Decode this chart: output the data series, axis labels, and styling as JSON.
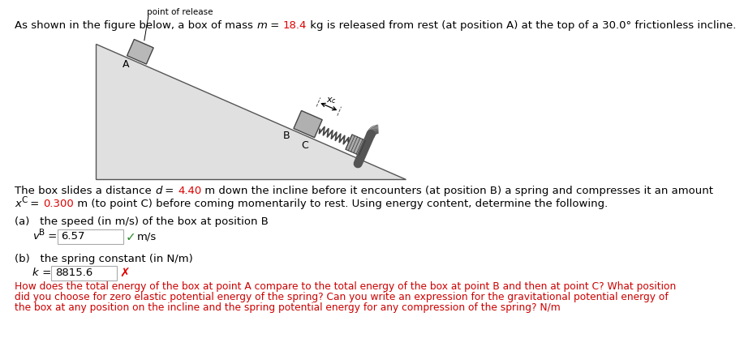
{
  "bg_color": "#ffffff",
  "red_color": "#dd0000",
  "green_color": "#2a8a2a",
  "text_color": "#000000",
  "hint_color": "#cc0000",
  "incline_face": "#e0e0e0",
  "incline_edge": "#555555",
  "box_face": "#aaaaaa",
  "box_edge": "#444444",
  "spring_color": "#444444",
  "wall_face": "#888888",
  "point_of_release": "point of release",
  "label_A": "A",
  "label_B": "B",
  "label_C": "C",
  "title_parts": [
    [
      "As shown in the figure below, a box of mass ",
      "#000000",
      false,
      false
    ],
    [
      "m",
      "#000000",
      true,
      false
    ],
    [
      " = ",
      "#000000",
      false,
      false
    ],
    [
      "18.4",
      "#dd0000",
      false,
      false
    ],
    [
      " kg is released from rest (at position A) at the top of a 30.0° frictionless incline.",
      "#000000",
      false,
      false
    ]
  ],
  "body1_parts": [
    [
      "The box slides a distance ",
      "#000000",
      false,
      false
    ],
    [
      "d",
      "#000000",
      true,
      false
    ],
    [
      " = ",
      "#000000",
      false,
      false
    ],
    [
      "4.40",
      "#dd0000",
      false,
      false
    ],
    [
      " m down the incline before it encounters (at position B) a spring and compresses it an amount",
      "#000000",
      false,
      false
    ]
  ],
  "body2_parts": [
    [
      "x",
      "#000000",
      true,
      false
    ],
    [
      "C",
      "#000000",
      false,
      false
    ],
    [
      " = ",
      "#000000",
      false,
      false
    ],
    [
      "0.300",
      "#dd0000",
      false,
      false
    ],
    [
      " m (to point C) before coming momentarily to rest. Using energy content, determine the following.",
      "#000000",
      false,
      false
    ]
  ],
  "part_a_label": "(a)   the speed (in m/s) of the box at position B",
  "part_a_ans": "6.57",
  "part_a_unit": "m/s",
  "part_b_label": "(b)   the spring constant (in N/m)",
  "part_b_ans": "8815.6",
  "hint_lines": [
    "How does the total energy of the box at point A compare to the total energy of the box at point B and then at point C? What position",
    "did you choose for zero elastic potential energy of the spring? Can you write an expression for the gravitational potential energy of",
    "the box at any position on the incline and the spring potential energy for any compression of the spring? N/m"
  ]
}
